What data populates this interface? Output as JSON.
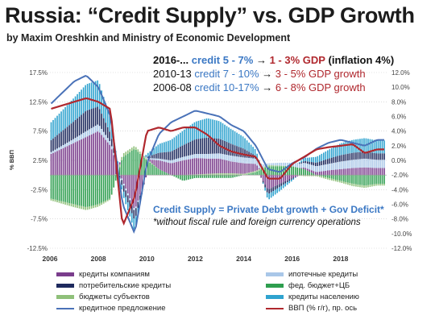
{
  "header": {
    "title": "Russia: “Credit Supply” vs. GDP Growth",
    "subtitle": "by Maxim Oreshkin and Ministry of Economic Development"
  },
  "annotations": {
    "row1": {
      "period": "2016-...",
      "credit": "credit 5 - 7%",
      "arrow": "→",
      "gdp": "1 - 3% GDP",
      "note": "(inflation 4%)"
    },
    "row2": {
      "period": "2010-13",
      "credit": "credit 7 - 10%",
      "arrow": "→",
      "gdp": "3 - 5% GDP growth"
    },
    "row3": {
      "period": "2006-08",
      "credit": "credit 10-17%",
      "arrow": "→",
      "gdp": "6 - 8% GDP growth"
    },
    "definition": "Credit Supply = Private Debt growth + Gov Deficit*",
    "footnote": "*without fiscal rule and foreign currency operations"
  },
  "colors": {
    "title": "#1c1c1c",
    "credit_text": "#3b78c4",
    "gdp_text": "#b0282e",
    "corporate": "#7a3d8c",
    "mortgage": "#a9c7e8",
    "consumer": "#1e2a5e",
    "federal": "#2e9e4f",
    "regional": "#8fc07a",
    "household": "#2fa3cf",
    "credit_supply": "#4a72b8",
    "gdp": "#b0282e"
  },
  "chart_data": {
    "type": "area",
    "x": [
      2006,
      2006.5,
      2007,
      2007.5,
      2008,
      2008.5,
      2009,
      2009.5,
      2010,
      2010.5,
      2011,
      2011.5,
      2012,
      2012.5,
      2013,
      2013.5,
      2014,
      2014.5,
      2015,
      2015.5,
      2016,
      2016.5,
      2017,
      2017.5,
      2018,
      2018.5,
      2019,
      2019.5
    ],
    "x_ticks": [
      "2006",
      "2008",
      "2010",
      "2012",
      "2014",
      "2016",
      "2018"
    ],
    "y_left_ticks": [
      "17.5%",
      "12.5%",
      "7.5%",
      "2.5%",
      "-2.5%",
      "-7.5%",
      "-12.5%"
    ],
    "y_left_label": "% ВВП",
    "y_left_range": [
      -12.5,
      17.5
    ],
    "y_right_ticks": [
      "12.0%",
      "10.0%",
      "8.0%",
      "6.0%",
      "4.0%",
      "2.0%",
      "0.0%",
      "-2.0%",
      "-4.0%",
      "-6.0%",
      "-8.0%",
      "-10.0%",
      "-12.0%"
    ],
    "y_right_range": [
      -12,
      12
    ],
    "series": [
      {
        "name": "кредиты компаниям",
        "values": [
          3.5,
          4.5,
          5.5,
          6.5,
          7.5,
          5,
          -1,
          -6,
          0,
          1.5,
          2,
          2.5,
          2.8,
          2.6,
          2.5,
          2,
          1.8,
          1.2,
          -2.5,
          -1.5,
          -0.5,
          0.3,
          0.5,
          0.8,
          1,
          1.2,
          1.3,
          1.2
        ]
      },
      {
        "name": "ипотечные кредиты",
        "values": [
          0.3,
          0.5,
          0.7,
          1,
          1.2,
          0.6,
          -0.3,
          -0.3,
          0.2,
          0.3,
          0.5,
          0.6,
          0.7,
          0.8,
          0.9,
          1,
          1,
          0.9,
          0.3,
          0.5,
          0.6,
          0.8,
          1,
          1.1,
          1.3,
          1.4,
          1.5,
          1.4
        ]
      },
      {
        "name": "потребительские кредиты",
        "values": [
          2,
          2.5,
          3,
          3.5,
          3,
          1.5,
          -1,
          -1.5,
          0.2,
          1,
          1.5,
          2,
          2.5,
          2.8,
          2.5,
          2,
          1.5,
          0.5,
          -0.8,
          -0.5,
          -0.2,
          0.3,
          0.6,
          0.9,
          1.1,
          1.2,
          1.2,
          1.1
        ]
      },
      {
        "name": "фед. бюджет+ЦБ",
        "values": [
          -4,
          -4.5,
          -5,
          -5.5,
          -5,
          -4,
          3,
          4.5,
          2.5,
          1,
          0,
          -1,
          -0.5,
          -0.5,
          -0.5,
          -0.5,
          0,
          0.5,
          1.5,
          1.5,
          1.5,
          1,
          0,
          -0.5,
          -1,
          -1.5,
          -1.8,
          -1.5
        ]
      },
      {
        "name": "бюджеты субъектов",
        "values": [
          -0.3,
          -0.4,
          -0.5,
          -0.5,
          -0.4,
          -0.2,
          0.6,
          0.5,
          0.2,
          0,
          0,
          0,
          0.1,
          0.2,
          0.3,
          0.3,
          0.2,
          0.2,
          0.2,
          0.1,
          0,
          -0.2,
          -0.2,
          -0.3,
          -0.3,
          -0.4,
          -0.4,
          -0.3
        ]
      },
      {
        "name": "кредиты населению",
        "values": [
          3,
          3.5,
          4,
          4.5,
          4.5,
          2.5,
          -1,
          -1.8,
          0.5,
          1.5,
          2,
          2.5,
          3,
          3.3,
          3,
          2.5,
          2,
          1,
          -1,
          -0.7,
          -0.3,
          0.5,
          1,
          1.5,
          2,
          2.2,
          2.3,
          2.2
        ]
      },
      {
        "name": "кредитное предложение",
        "values": [
          12,
          14,
          16,
          17,
          15,
          10,
          -5,
          -10,
          2,
          7,
          9,
          10,
          11,
          10.5,
          10,
          8.5,
          7.5,
          5,
          1,
          0.5,
          2,
          3,
          4.5,
          5.5,
          6,
          5.5,
          5,
          6
        ]
      },
      {
        "name": "ВВП (% г/г), пр. ось",
        "values": [
          7,
          7.5,
          8,
          8.5,
          8,
          7,
          -9,
          -5,
          4,
          4.5,
          4,
          4.5,
          4.5,
          3.5,
          2,
          1.2,
          0.8,
          0.5,
          -2.5,
          -2.5,
          -0.5,
          0.5,
          1.5,
          1.8,
          2,
          2.2,
          1,
          1.5
        ]
      }
    ]
  },
  "legend": {
    "corporate": "кредиты компаниям",
    "mortgage": "ипотечные кредиты",
    "consumer": "потребительские кредиты",
    "federal": "фед. бюджет+ЦБ",
    "regional": "бюджеты субъектов",
    "household": "кредиты населению",
    "credit_supply": "кредитное предложение",
    "gdp": "ВВП (% г/г), пр. ось"
  }
}
